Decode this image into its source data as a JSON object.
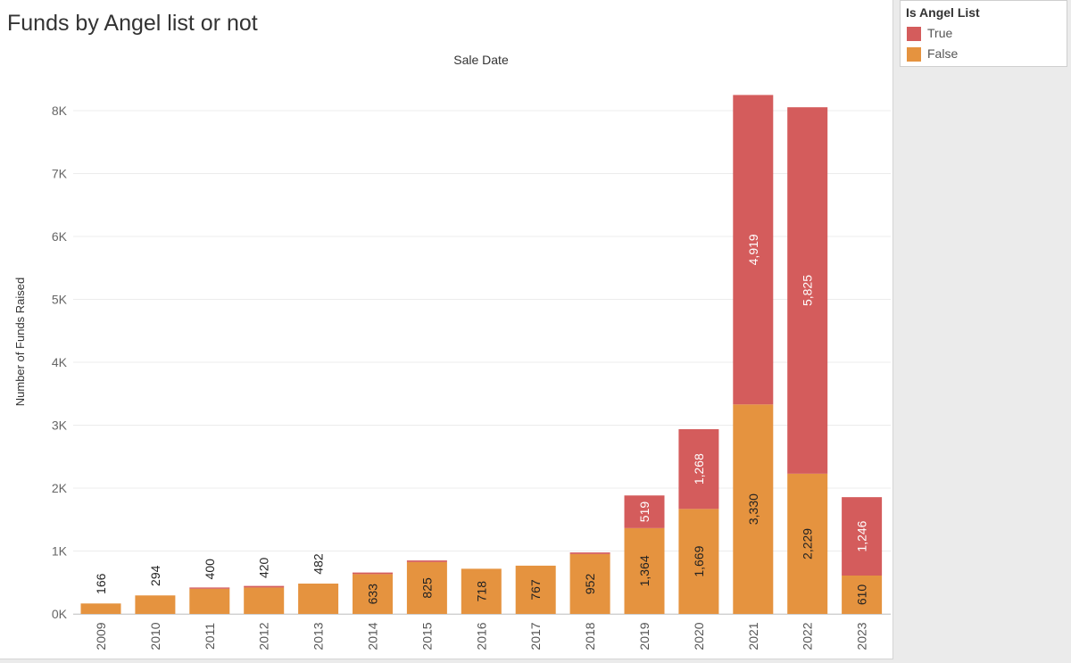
{
  "legend": {
    "title": "Is Angel List",
    "items": [
      {
        "label": "True",
        "color": "#d45c5c"
      },
      {
        "label": "False",
        "color": "#e5933f"
      }
    ]
  },
  "chart_data": {
    "type": "bar",
    "stacked": true,
    "orientation": "vertical",
    "title": "Funds by Angel list or not",
    "xlabel": "Sale Date",
    "ylabel": "Number of Funds Raised",
    "xlabel_position": "top",
    "categories": [
      "2009",
      "2010",
      "2011",
      "2012",
      "2013",
      "2014",
      "2015",
      "2016",
      "2017",
      "2018",
      "2019",
      "2020",
      "2021",
      "2022",
      "2023"
    ],
    "series": [
      {
        "name": "False",
        "color": "#e5933f",
        "label_color": "#222222",
        "values": [
          166,
          294,
          400,
          420,
          482,
          633,
          825,
          718,
          767,
          952,
          1364,
          1669,
          3330,
          2229,
          610
        ],
        "labels": [
          "166",
          "294",
          "400",
          "420",
          "482",
          "633",
          "825",
          "718",
          "767",
          "952",
          "1,364",
          "1,669",
          "3,330",
          "2,229",
          "610"
        ]
      },
      {
        "name": "True",
        "color": "#d45c5c",
        "label_color": "#ffffff",
        "values": [
          0,
          0,
          20,
          25,
          0,
          25,
          25,
          0,
          0,
          25,
          519,
          1268,
          4919,
          5825,
          1246
        ],
        "labels": [
          "",
          "",
          "",
          "",
          "",
          "",
          "",
          "",
          "",
          "",
          "519",
          "1,268",
          "4,919",
          "5,825",
          "1,246"
        ]
      }
    ],
    "ylim": [
      0,
      8600
    ],
    "yticks": [
      0,
      1000,
      2000,
      3000,
      4000,
      5000,
      6000,
      7000,
      8000
    ],
    "ytick_labels": [
      "0K",
      "1K",
      "2K",
      "3K",
      "4K",
      "5K",
      "6K",
      "7K",
      "8K"
    ],
    "grid": true,
    "legend_position": "right"
  }
}
